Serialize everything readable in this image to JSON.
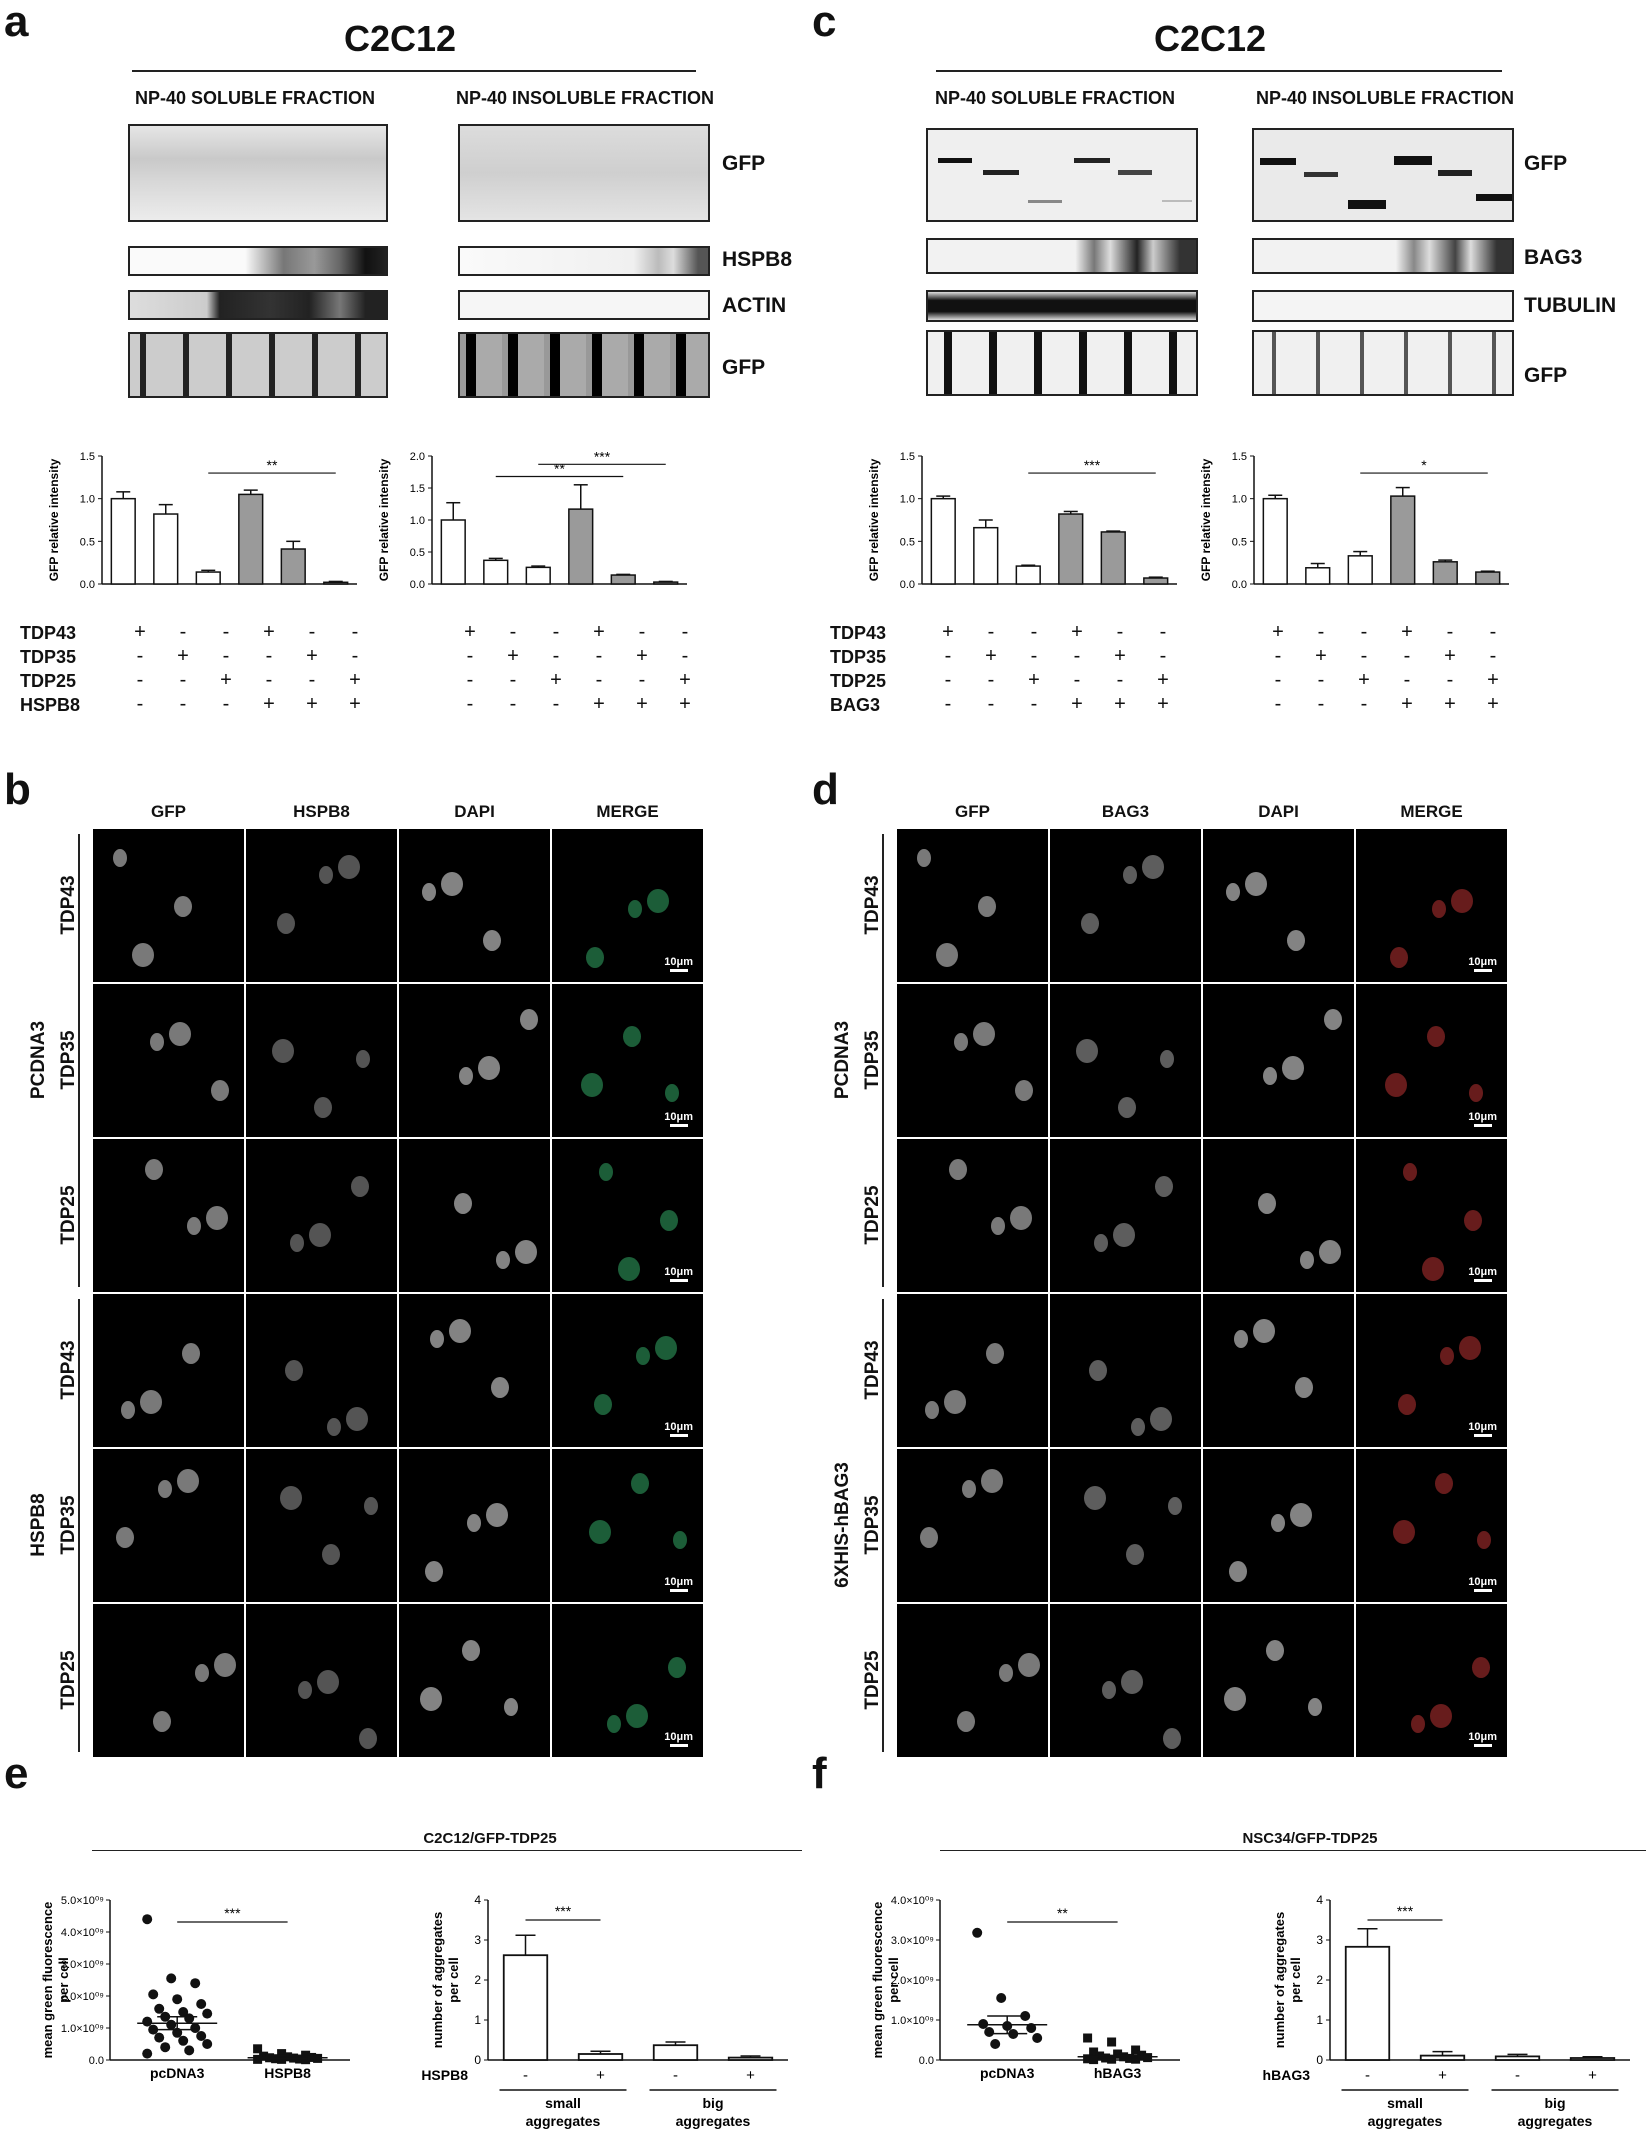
{
  "panels": {
    "a": "a",
    "b": "b",
    "c": "c",
    "d": "d",
    "e": "e",
    "f": "f"
  },
  "blot_a": {
    "title": "C2C12",
    "fraction_soluble": "NP-40 SOLUBLE FRACTION",
    "fraction_insoluble": "NP-40 INSOLUBLE FRACTION",
    "labels": [
      "GFP",
      "HSPB8",
      "ACTIN",
      "GFP"
    ]
  },
  "blot_c": {
    "title": "C2C12",
    "fraction_soluble": "NP-40 SOLUBLE FRACTION",
    "fraction_insoluble": "NP-40 INSOLUBLE FRACTION",
    "labels": [
      "GFP",
      "BAG3",
      "TUBULIN",
      "GFP"
    ]
  },
  "cond_a": {
    "rows": [
      "TDP43",
      "TDP35",
      "TDP25",
      "HSPB8"
    ],
    "signs": [
      [
        "+",
        "-",
        "-",
        "+",
        "-",
        "-"
      ],
      [
        "-",
        "+",
        "-",
        "-",
        "+",
        "-"
      ],
      [
        "-",
        "-",
        "+",
        "-",
        "-",
        "+"
      ],
      [
        "-",
        "-",
        "-",
        "+",
        "+",
        "+"
      ]
    ]
  },
  "cond_c": {
    "rows": [
      "TDP43",
      "TDP35",
      "TDP25",
      "BAG3"
    ],
    "signs": [
      [
        "+",
        "-",
        "-",
        "+",
        "-",
        "-"
      ],
      [
        "-",
        "+",
        "-",
        "-",
        "+",
        "-"
      ],
      [
        "-",
        "-",
        "+",
        "-",
        "-",
        "+"
      ],
      [
        "-",
        "-",
        "-",
        "+",
        "+",
        "+"
      ]
    ]
  },
  "chart_data": [
    {
      "id": "a-left",
      "type": "bar",
      "ylabel": "GFP relative intensity",
      "ylim": [
        0,
        1.5
      ],
      "yticks": [
        "0.0",
        "0.5",
        "1.0",
        "1.5"
      ],
      "values": [
        1.0,
        0.82,
        0.14,
        1.05,
        0.41,
        0.02
      ],
      "errors": [
        0.08,
        0.11,
        0.02,
        0.05,
        0.09,
        0.01
      ],
      "fills": [
        "white",
        "white",
        "white",
        "gray",
        "gray",
        "gray"
      ],
      "sig": [
        {
          "from": 2,
          "to": 5,
          "label": "**",
          "y": 1.3
        }
      ]
    },
    {
      "id": "a-right",
      "type": "bar",
      "ylabel": "GFP relative intensity",
      "ylim": [
        0,
        2.0
      ],
      "yticks": [
        "0.0",
        "0.5",
        "1.0",
        "1.5",
        "2.0"
      ],
      "values": [
        1.0,
        0.37,
        0.26,
        1.17,
        0.14,
        0.03
      ],
      "errors": [
        0.27,
        0.03,
        0.02,
        0.38,
        0.01,
        0.01
      ],
      "fills": [
        "white",
        "white",
        "white",
        "gray",
        "gray",
        "gray"
      ],
      "sig": [
        {
          "from": 1,
          "to": 4,
          "label": "**",
          "y": 1.68
        },
        {
          "from": 2,
          "to": 5,
          "label": "***",
          "y": 1.87
        }
      ]
    },
    {
      "id": "c-left",
      "type": "bar",
      "ylabel": "GFP relative intensity",
      "ylim": [
        0,
        1.5
      ],
      "yticks": [
        "0.0",
        "0.5",
        "1.0",
        "1.5"
      ],
      "values": [
        1.0,
        0.66,
        0.21,
        0.82,
        0.61,
        0.07
      ],
      "errors": [
        0.03,
        0.09,
        0.01,
        0.03,
        0.01,
        0.01
      ],
      "fills": [
        "white",
        "white",
        "white",
        "gray",
        "gray",
        "gray"
      ],
      "sig": [
        {
          "from": 2,
          "to": 5,
          "label": "***",
          "y": 1.3
        }
      ]
    },
    {
      "id": "c-right",
      "type": "bar",
      "ylabel": "GFP relative intensity",
      "ylim": [
        0,
        1.5
      ],
      "yticks": [
        "0.0",
        "0.5",
        "1.0",
        "1.5"
      ],
      "values": [
        1.0,
        0.19,
        0.33,
        1.03,
        0.26,
        0.14
      ],
      "errors": [
        0.04,
        0.05,
        0.05,
        0.1,
        0.02,
        0.01
      ],
      "fills": [
        "white",
        "white",
        "white",
        "gray",
        "gray",
        "gray"
      ],
      "sig": [
        {
          "from": 2,
          "to": 5,
          "label": "*",
          "y": 1.3
        }
      ]
    },
    {
      "id": "e-left",
      "type": "scatter",
      "ylabel": "mean green fluorescence per cell",
      "yticks": [
        "0.0",
        "1.0×10⁰⁹",
        "2.0×10⁰⁹",
        "3.0×10⁰⁹",
        "4.0×10⁰⁹",
        "5.0×10⁰⁹"
      ],
      "ylim": [
        0,
        5.0
      ],
      "categories": [
        "pcDNA3",
        "HSPB8"
      ],
      "means": [
        1.15,
        0.07
      ],
      "sem": [
        0.2,
        0.02
      ],
      "points": [
        [
          4.4,
          2.55,
          2.4,
          2.05,
          1.9,
          1.75,
          1.6,
          1.5,
          1.45,
          1.35,
          1.3,
          1.2,
          1.1,
          1.0,
          0.95,
          0.85,
          0.75,
          0.7,
          0.6,
          0.5,
          0.4,
          0.3,
          0.2
        ],
        [
          0.35,
          0.2,
          0.15,
          0.12,
          0.1,
          0.08,
          0.07,
          0.06,
          0.05,
          0.04,
          0.03,
          0.02,
          0.02,
          0.01
        ]
      ],
      "markers": [
        "circle",
        "square"
      ],
      "sig": [
        {
          "label": "***"
        }
      ]
    },
    {
      "id": "e-right",
      "type": "bar",
      "ylabel": "number of aggregates per cell",
      "ylim": [
        0,
        4
      ],
      "yticks": [
        "0",
        "1",
        "2",
        "3",
        "4"
      ],
      "values": [
        2.62,
        0.15,
        0.37,
        0.06
      ],
      "errors": [
        0.5,
        0.07,
        0.08,
        0.04
      ],
      "signs": [
        "-",
        "+",
        "-",
        "+"
      ],
      "factor": "HSPB8",
      "groups": [
        "small aggregates",
        "big aggregates"
      ],
      "sig": [
        {
          "from": 0,
          "to": 1,
          "label": "***",
          "y": 3.5
        }
      ]
    },
    {
      "id": "f-left",
      "type": "scatter",
      "ylabel": "mean green fluorescence per cell",
      "yticks": [
        "0.0",
        "1.0×10⁰⁹",
        "2.0×10⁰⁹",
        "3.0×10⁰⁹",
        "4.0×10⁰⁹"
      ],
      "ylim": [
        0,
        4.0
      ],
      "categories": [
        "pcDNA3",
        "hBAG3"
      ],
      "means": [
        0.88,
        0.08
      ],
      "sem": [
        0.22,
        0.03
      ],
      "points": [
        [
          3.18,
          1.55,
          1.1,
          0.9,
          0.85,
          0.8,
          0.7,
          0.65,
          0.55,
          0.4
        ],
        [
          0.55,
          0.45,
          0.25,
          0.2,
          0.15,
          0.12,
          0.1,
          0.08,
          0.06,
          0.05,
          0.04,
          0.03,
          0.02,
          0.02,
          0.01
        ]
      ],
      "markers": [
        "circle",
        "square"
      ],
      "sig": [
        {
          "label": "**"
        }
      ]
    },
    {
      "id": "f-right",
      "type": "bar",
      "ylabel": "number of aggregates per cell",
      "ylim": [
        0,
        4
      ],
      "yticks": [
        "0",
        "1",
        "2",
        "3",
        "4"
      ],
      "values": [
        2.83,
        0.11,
        0.09,
        0.05
      ],
      "errors": [
        0.45,
        0.1,
        0.05,
        0.03
      ],
      "signs": [
        "-",
        "+",
        "-",
        "+"
      ],
      "factor": "hBAG3",
      "groups": [
        "small aggregates",
        "big aggregates"
      ],
      "sig": [
        {
          "from": 0,
          "to": 1,
          "label": "***",
          "y": 3.5
        }
      ]
    }
  ],
  "micro_b": {
    "channels": [
      "GFP",
      "HSPB8",
      "DAPI",
      "MERGE"
    ],
    "rows": [
      "TDP43",
      "TDP35",
      "TDP25",
      "TDP43",
      "TDP35",
      "TDP25"
    ],
    "groups": [
      "PCDNA3",
      "HSPB8"
    ],
    "scale": "10μm"
  },
  "micro_d": {
    "channels": [
      "GFP",
      "BAG3",
      "DAPI",
      "MERGE"
    ],
    "rows": [
      "TDP43",
      "TDP35",
      "TDP25",
      "TDP43",
      "TDP35",
      "TDP25"
    ],
    "groups": [
      "PCDNA3",
      "6XHIS-hBAG3"
    ],
    "scale": "10μm"
  },
  "section_e": "C2C12/GFP-TDP25",
  "section_f": "NSC34/GFP-TDP25"
}
